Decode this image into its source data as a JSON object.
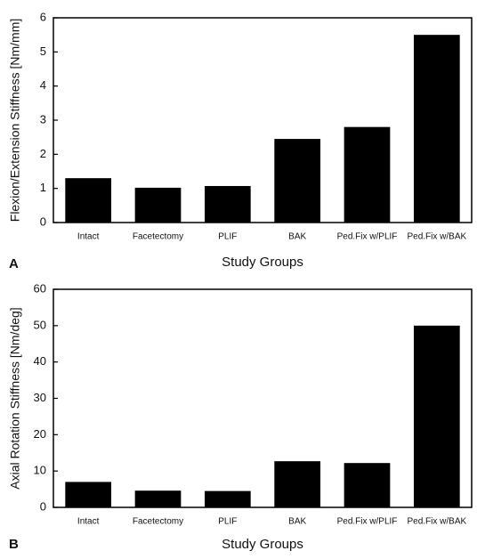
{
  "chart_data": [
    {
      "type": "bar",
      "panel_label": "A",
      "x_label": "Study Groups",
      "y_label": "Flexion/Extension Stiffness [Nm/mm]",
      "categories": [
        "Intact",
        "Facetectomy",
        "PLIF",
        "BAK",
        "Ped.Fix w/PLIF",
        "Ped.Fix w/BAK"
      ],
      "values": [
        1.3,
        1.02,
        1.07,
        2.45,
        2.8,
        5.5
      ],
      "color": "#000000",
      "ylim": [
        0,
        6
      ],
      "yticks": [
        0,
        1,
        2,
        3,
        4,
        5,
        6
      ]
    },
    {
      "type": "bar",
      "panel_label": "B",
      "x_label": "Study Groups",
      "y_label": "Axial Rotation Stiffness [Nm/deg]",
      "categories": [
        "Intact",
        "Facetectomy",
        "PLIF",
        "BAK",
        "Ped.Fix w/PLIF",
        "Ped.Fix w/BAK"
      ],
      "values": [
        7,
        4.6,
        4.5,
        12.7,
        12.2,
        50
      ],
      "color": "#000000",
      "ylim": [
        0,
        60
      ],
      "yticks": [
        0,
        10,
        20,
        30,
        40,
        50,
        60
      ]
    }
  ]
}
